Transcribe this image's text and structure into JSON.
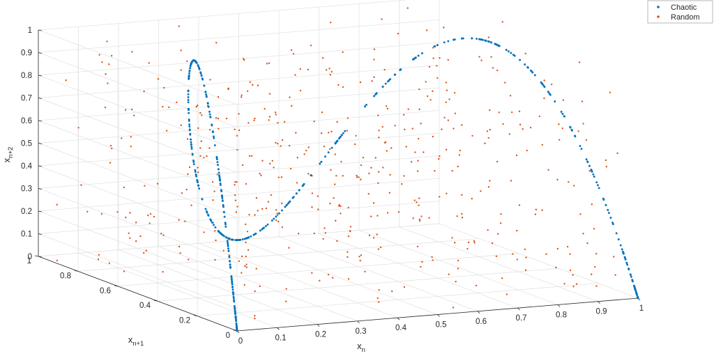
{
  "chart_data": {
    "type": "scatter",
    "title": "",
    "xlabel": "x_n",
    "ylabel": "x_n+1",
    "zlabel": "x_n+2",
    "x_label_parts": [
      "x",
      "n"
    ],
    "y_label_parts": [
      "x",
      "n+1"
    ],
    "z_label_parts": [
      "x",
      "n+2"
    ],
    "xlim": [
      0,
      1
    ],
    "ylim": [
      0,
      1
    ],
    "zlim": [
      0,
      1
    ],
    "x_ticks": [
      "0",
      "0.1",
      "0.2",
      "0.3",
      "0.4",
      "0.5",
      "0.6",
      "0.7",
      "0.8",
      "0.9",
      "1"
    ],
    "y_ticks": [
      "0",
      "0.2",
      "0.4",
      "0.6",
      "0.8",
      "1"
    ],
    "z_ticks": [
      "0",
      "0.1",
      "0.2",
      "0.3",
      "0.4",
      "0.5",
      "0.6",
      "0.7",
      "0.8",
      "0.9",
      "1"
    ],
    "grid": true,
    "legend_position": "top-right",
    "series": [
      {
        "name": "Chaotic",
        "color": "#0072BD",
        "generator": "logistic map r=4: points (x_n, x_n+1, x_n+2), x_n+1 = 4 x_n (1 - x_n)",
        "count": 500
      },
      {
        "name": "Random",
        "color": "#D95319",
        "generator": "independent uniform random triples on [0,1]^3",
        "count": 500
      }
    ]
  }
}
